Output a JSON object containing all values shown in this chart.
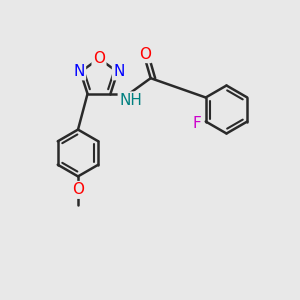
{
  "bg_color": "#e8e8e8",
  "bond_color": "#2a2a2a",
  "bond_width": 1.8,
  "atom_colors": {
    "O": "#ff0000",
    "N_blue": "#0000ff",
    "N_nh": "#008080",
    "F": "#cc00cc"
  },
  "font_size_atom": 11,
  "font_size_nh": 10
}
